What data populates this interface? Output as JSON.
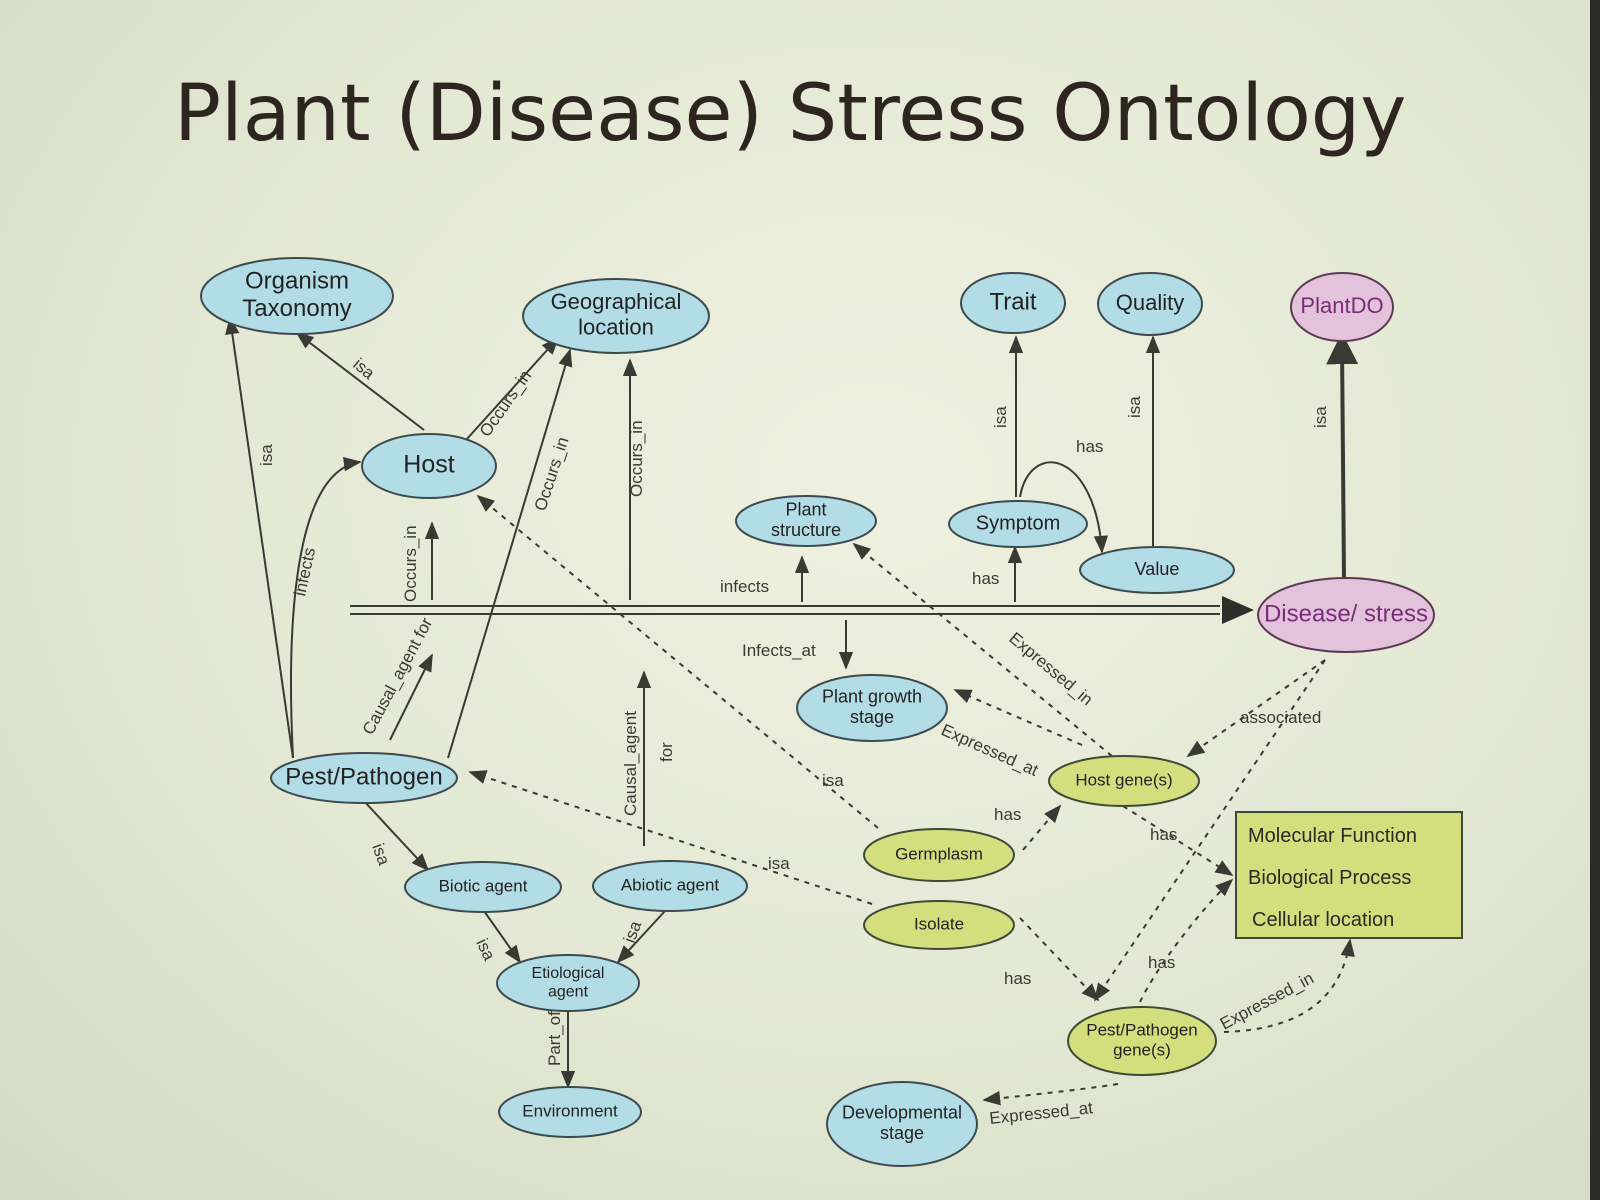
{
  "title": "Plant (Disease) Stress Ontology",
  "nodes": {
    "organism_taxonomy": [
      "Organism",
      "Taxonomy"
    ],
    "geographical_location": [
      "Geographical",
      "location"
    ],
    "trait": [
      "Trait"
    ],
    "quality": [
      "Quality"
    ],
    "plantdo": [
      "PlantDO"
    ],
    "host": [
      "Host"
    ],
    "plant_structure": [
      "Plant",
      "structure"
    ],
    "symptom": [
      "Symptom"
    ],
    "value": [
      "Value"
    ],
    "disease_stress": [
      "Disease/ stress"
    ],
    "plant_growth_stage": [
      "Plant growth",
      "stage"
    ],
    "pest_pathogen": [
      "Pest/Pathogen"
    ],
    "host_genes": [
      "Host gene(s)"
    ],
    "germplasm": [
      "Germplasm"
    ],
    "biotic_agent": [
      "Biotic agent"
    ],
    "abiotic_agent": [
      "Abiotic agent"
    ],
    "isolate": [
      "Isolate"
    ],
    "etiological_agent": [
      "Etiological",
      "agent"
    ],
    "pest_pathogen_genes": [
      "Pest/Pathogen",
      "gene(s)"
    ],
    "environment": [
      "Environment"
    ],
    "developmental_stage": [
      "Developmental",
      "stage"
    ]
  },
  "go_box": [
    "Molecular Function",
    "Biological Process",
    "Cellular location"
  ],
  "edge_labels": {
    "host_isa": "isa",
    "host_occurs": "Occurs_in",
    "pest_isa": "isa",
    "pest_infects": "infects",
    "pest_occurs": "Occurs_in",
    "occurs_in_up": "Occurs_in",
    "occurs_in_geo": "Occurs_in",
    "causal_agent_for_left": "Causal_agent for",
    "infects": "infects",
    "infects_at": "Infects_at",
    "symptom_isa": "isa",
    "symptom_has": "has",
    "has_symptom": "has",
    "value_isa": "isa",
    "disease_isa": "isa",
    "causal_agent_mid": "Causal_agent",
    "for_mid": "for",
    "germplasm_isa": "isa",
    "isolate_isa": "isa",
    "expressed_in_top": "Expressed_in",
    "expressed_at": "Expressed_at",
    "associated": "associated",
    "germplasm_has": "has",
    "hostgene_has": "has",
    "isolate_has": "has",
    "pgene_has": "has",
    "pgene_expressed_in": "Expressed_in",
    "pgene_expressed_at": "Expressed_at",
    "biotic_isa": "isa",
    "biotic_to_etio_isa": "isa",
    "abiotic_isa": "isa",
    "part_of": "Part_of"
  }
}
